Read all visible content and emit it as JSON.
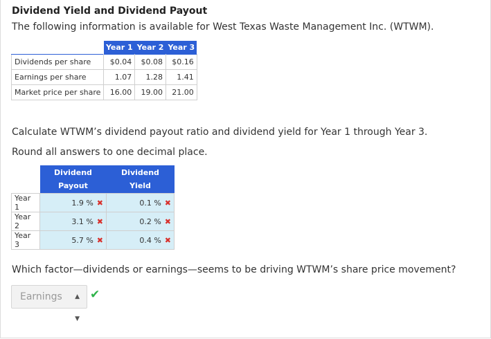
{
  "title": "Dividend Yield and Dividend Payout",
  "intro": "The following information is available for West Texas Waste Management Inc. (WTWM).",
  "info_table": {
    "headers": [
      "Year 1",
      "Year 2",
      "Year 3"
    ],
    "rows": [
      {
        "label": "Dividends per share",
        "values": [
          "$0.04",
          "$0.08",
          "$0.16"
        ]
      },
      {
        "label": "Earnings per share",
        "values": [
          "1.07",
          "1.28",
          "1.41"
        ]
      },
      {
        "label": "Market price per share",
        "values": [
          "16.00",
          "19.00",
          "21.00"
        ]
      }
    ]
  },
  "instruction_1": "Calculate WTWM’s dividend payout ratio and dividend yield for Year 1 through Year 3.",
  "instruction_2": "Round all answers to one decimal place.",
  "answer_table": {
    "col1_line1": "Dividend",
    "col1_line2": "Payout",
    "col2_line1": "Dividend",
    "col2_line2": "Yield",
    "percent_sign": "%",
    "rows": [
      {
        "label": "Year 1",
        "payout": "1.9",
        "yield": "0.1"
      },
      {
        "label": "Year 2",
        "payout": "3.1",
        "yield": "0.2"
      },
      {
        "label": "Year 3",
        "payout": "5.7",
        "yield": "0.4"
      }
    ],
    "incorrect_icon": "close-icon"
  },
  "question": "Which factor—dividends or earnings—seems to be driving WTWM’s share price movement?",
  "dropdown": {
    "selected": "Earnings",
    "icon": "sort-arrows-icon"
  },
  "correct_icon": "checkmark-icon",
  "colors": {
    "header_blue": "#2c5fd6",
    "input_fill": "#d6eef7",
    "wrong": "#d8302b",
    "right": "#2fb34a"
  }
}
